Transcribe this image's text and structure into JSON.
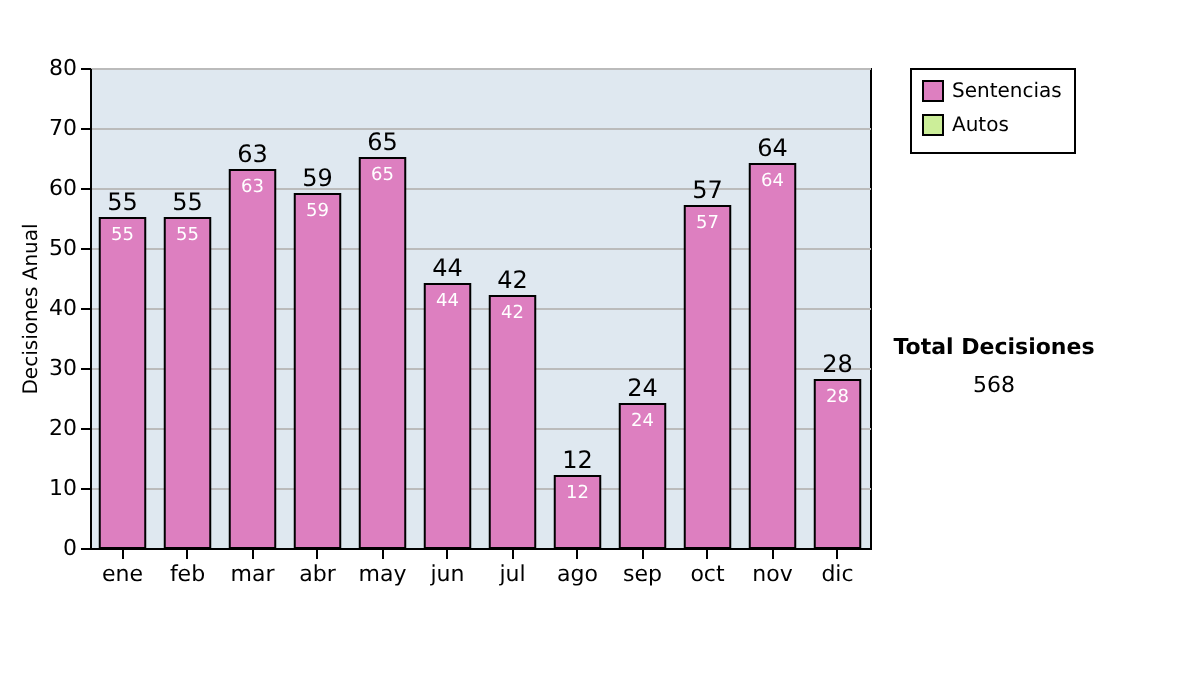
{
  "chart_data": {
    "type": "bar",
    "stacked": true,
    "ylabel": "Decisiones Anual",
    "categories": [
      "ene",
      "feb",
      "mar",
      "abr",
      "may",
      "jun",
      "jul",
      "ago",
      "sep",
      "oct",
      "nov",
      "dic"
    ],
    "series": [
      {
        "name": "Sentencias",
        "color": "#dd7fc0",
        "values": [
          55,
          55,
          63,
          59,
          65,
          44,
          42,
          12,
          24,
          57,
          64,
          28
        ],
        "value_labels": [
          "55",
          "55",
          "63",
          "59",
          "65",
          "44",
          "42",
          "12",
          "24",
          "57",
          "64",
          "28"
        ]
      },
      {
        "name": "Autos",
        "color": "#ccee99",
        "values": [
          0,
          0,
          0,
          0,
          0,
          0,
          0,
          0,
          0,
          0,
          0,
          0
        ]
      }
    ],
    "totals": [
      "55",
      "55",
      "63",
      "59",
      "65",
      "44",
      "42",
      "12",
      "24",
      "57",
      "64",
      "28"
    ],
    "ylim": [
      0,
      80
    ],
    "yticks": [
      0,
      10,
      20,
      30,
      40,
      50,
      60,
      70,
      80
    ],
    "grid": "y",
    "legend": "right",
    "annotations": [
      "Total Decisiones",
      "568"
    ]
  }
}
